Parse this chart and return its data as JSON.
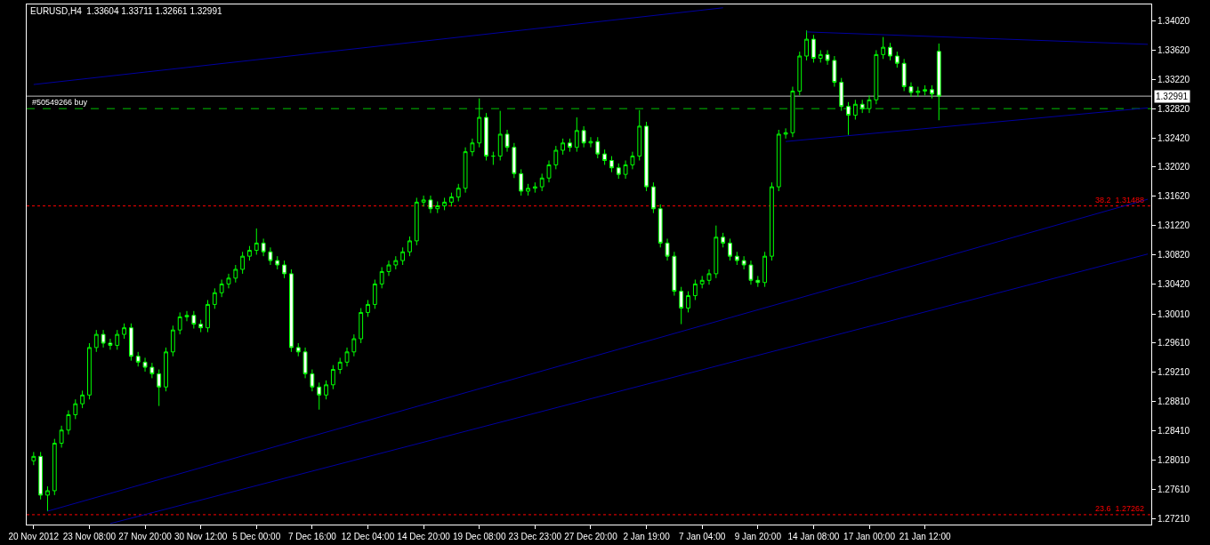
{
  "chart_data": {
    "type": "candlestick",
    "title": "EURUSD,H4  1.33604 1.33711 1.32661 1.32991",
    "color": "#00ff00",
    "categories": [
      "20 Nov 2012",
      null,
      null,
      null,
      null,
      null,
      null,
      null,
      "23 Nov 08:00",
      null,
      null,
      null,
      null,
      null,
      null,
      null,
      "27 Nov 20:00",
      null,
      null,
      null,
      null,
      null,
      null,
      null,
      "30 Nov 12:00",
      null,
      null,
      null,
      null,
      null,
      null,
      null,
      "5 Dec 00:00",
      null,
      null,
      null,
      null,
      null,
      null,
      null,
      "7 Dec 16:00",
      null,
      null,
      null,
      null,
      null,
      null,
      null,
      "12 Dec 04:00",
      null,
      null,
      null,
      null,
      null,
      null,
      null,
      "14 Dec 20:00",
      null,
      null,
      null,
      null,
      null,
      null,
      null,
      "19 Dec 08:00",
      null,
      null,
      null,
      null,
      null,
      null,
      null,
      "23 Dec 23:00",
      null,
      null,
      null,
      null,
      null,
      null,
      null,
      "27 Dec 20:00",
      null,
      null,
      null,
      null,
      null,
      null,
      null,
      "2 Jan 19:00",
      null,
      null,
      null,
      null,
      null,
      null,
      null,
      "7 Jan 04:00",
      null,
      null,
      null,
      null,
      null,
      null,
      null,
      "9 Jan 20:00",
      null,
      null,
      null,
      null,
      null,
      null,
      null,
      "14 Jan 08:00",
      null,
      null,
      null,
      null,
      null,
      null,
      null,
      "17 Jan 00:00",
      null,
      null,
      null,
      null,
      null,
      null,
      null,
      "21 Jan 12:00",
      null,
      null,
      null,
      null,
      null,
      null,
      null,
      null,
      null,
      null,
      null,
      null,
      null,
      null,
      null,
      null,
      null,
      null,
      null,
      null,
      null,
      null,
      null,
      null,
      null,
      null,
      null,
      null,
      null,
      null,
      null,
      null
    ],
    "ohlc": [
      [
        1.28,
        1.2812,
        1.2794,
        1.2806
      ],
      [
        1.2806,
        1.2812,
        1.2747,
        1.2753
      ],
      [
        1.2753,
        1.2765,
        1.2731,
        1.2759
      ],
      [
        1.2759,
        1.283,
        1.2753,
        1.2824
      ],
      [
        1.2824,
        1.2848,
        1.2818,
        1.2842
      ],
      [
        1.2842,
        1.2869,
        1.2836,
        1.2863
      ],
      [
        1.2863,
        1.2884,
        1.2857,
        1.2878
      ],
      [
        1.2878,
        1.2896,
        1.2872,
        1.289
      ],
      [
        1.289,
        1.2961,
        1.2884,
        1.2955
      ],
      [
        1.2955,
        1.2979,
        1.2949,
        1.2973
      ],
      [
        1.2973,
        1.2979,
        1.2955,
        1.2961
      ],
      [
        1.2961,
        1.2967,
        1.2952,
        1.2958
      ],
      [
        1.2958,
        1.2979,
        1.2952,
        1.2973
      ],
      [
        1.2973,
        1.2988,
        1.2967,
        1.2982
      ],
      [
        1.2982,
        1.2988,
        1.2937,
        1.2943
      ],
      [
        1.2943,
        1.2949,
        1.2929,
        1.2935
      ],
      [
        1.2935,
        1.2941,
        1.2922,
        1.2928
      ],
      [
        1.2928,
        1.2934,
        1.2913,
        1.2919
      ],
      [
        1.2919,
        1.2925,
        1.2875,
        1.2901
      ],
      [
        1.2901,
        1.2955,
        1.2895,
        1.2949
      ],
      [
        1.2949,
        1.2985,
        1.2943,
        1.2979
      ],
      [
        1.2979,
        1.3003,
        1.2973,
        1.2997
      ],
      [
        1.2997,
        1.3005,
        1.2991,
        1.2999
      ],
      [
        1.2999,
        1.3005,
        1.2981,
        1.2987
      ],
      [
        1.2987,
        1.2993,
        1.2976,
        1.2982
      ],
      [
        1.2982,
        1.302,
        1.2976,
        1.3014
      ],
      [
        1.3014,
        1.3036,
        1.3008,
        1.303
      ],
      [
        1.303,
        1.3048,
        1.3024,
        1.3042
      ],
      [
        1.3042,
        1.3056,
        1.3036,
        1.305
      ],
      [
        1.305,
        1.3068,
        1.3044,
        1.3062
      ],
      [
        1.3062,
        1.3086,
        1.3056,
        1.308
      ],
      [
        1.308,
        1.3094,
        1.3074,
        1.3088
      ],
      [
        1.3088,
        1.3118,
        1.3082,
        1.3098
      ],
      [
        1.3098,
        1.3104,
        1.308,
        1.3086
      ],
      [
        1.3086,
        1.3092,
        1.3068,
        1.3074
      ],
      [
        1.3074,
        1.308,
        1.3062,
        1.3068
      ],
      [
        1.3068,
        1.3074,
        1.305,
        1.3056
      ],
      [
        1.3056,
        1.3062,
        1.2949,
        1.2955
      ],
      [
        1.2955,
        1.2961,
        1.2943,
        1.2949
      ],
      [
        1.2949,
        1.2955,
        1.2913,
        1.2919
      ],
      [
        1.2919,
        1.2925,
        1.2895,
        1.2901
      ],
      [
        1.2901,
        1.2907,
        1.287,
        1.289
      ],
      [
        1.289,
        1.291,
        1.2884,
        1.2904
      ],
      [
        1.2904,
        1.2931,
        1.2898,
        1.2925
      ],
      [
        1.2925,
        1.2941,
        1.2919,
        1.2935
      ],
      [
        1.2935,
        1.2955,
        1.2929,
        1.2949
      ],
      [
        1.2949,
        1.2973,
        1.2943,
        1.2967
      ],
      [
        1.2967,
        1.3009,
        1.2961,
        1.3003
      ],
      [
        1.3003,
        1.302,
        1.2997,
        1.3014
      ],
      [
        1.3014,
        1.3048,
        1.3008,
        1.3042
      ],
      [
        1.3042,
        1.3065,
        1.3036,
        1.3059
      ],
      [
        1.3059,
        1.3074,
        1.3053,
        1.3068
      ],
      [
        1.3068,
        1.308,
        1.3062,
        1.3074
      ],
      [
        1.3074,
        1.3092,
        1.3068,
        1.3086
      ],
      [
        1.3086,
        1.3107,
        1.308,
        1.3101
      ],
      [
        1.3101,
        1.316,
        1.3095,
        1.3154
      ],
      [
        1.3154,
        1.3163,
        1.3148,
        1.3157
      ],
      [
        1.3157,
        1.3163,
        1.3139,
        1.3145
      ],
      [
        1.3145,
        1.3155,
        1.3139,
        1.3149
      ],
      [
        1.3149,
        1.316,
        1.3143,
        1.3154
      ],
      [
        1.3154,
        1.3167,
        1.3148,
        1.3161
      ],
      [
        1.3161,
        1.3179,
        1.3155,
        1.3173
      ],
      [
        1.3173,
        1.3229,
        1.3167,
        1.3223
      ],
      [
        1.3223,
        1.3241,
        1.3217,
        1.3235
      ],
      [
        1.3235,
        1.3296,
        1.3229,
        1.327
      ],
      [
        1.327,
        1.3276,
        1.3211,
        1.3217
      ],
      [
        1.3217,
        1.3223,
        1.3205,
        1.3217
      ],
      [
        1.3217,
        1.3279,
        1.3211,
        1.3247
      ],
      [
        1.3247,
        1.3253,
        1.3223,
        1.3229
      ],
      [
        1.3229,
        1.3235,
        1.3187,
        1.3193
      ],
      [
        1.3193,
        1.3199,
        1.3163,
        1.3169
      ],
      [
        1.3169,
        1.3179,
        1.3163,
        1.3173
      ],
      [
        1.3173,
        1.3181,
        1.3167,
        1.3175
      ],
      [
        1.3175,
        1.3193,
        1.3169,
        1.3187
      ],
      [
        1.3187,
        1.3211,
        1.3181,
        1.3205
      ],
      [
        1.3205,
        1.3231,
        1.3199,
        1.3225
      ],
      [
        1.3225,
        1.3241,
        1.3219,
        1.3235
      ],
      [
        1.3235,
        1.3241,
        1.3223,
        1.3229
      ],
      [
        1.3229,
        1.327,
        1.3223,
        1.3252
      ],
      [
        1.3252,
        1.3258,
        1.3229,
        1.3235
      ],
      [
        1.3235,
        1.3243,
        1.3229,
        1.3237
      ],
      [
        1.3237,
        1.3243,
        1.3214,
        1.322
      ],
      [
        1.322,
        1.3226,
        1.3205,
        1.3211
      ],
      [
        1.3211,
        1.3217,
        1.3195,
        1.3201
      ],
      [
        1.3201,
        1.3207,
        1.3186,
        1.3192
      ],
      [
        1.3192,
        1.3211,
        1.3186,
        1.3205
      ],
      [
        1.3205,
        1.3223,
        1.3199,
        1.3217
      ],
      [
        1.3217,
        1.328,
        1.3211,
        1.3258
      ],
      [
        1.3258,
        1.3264,
        1.3169,
        1.3175
      ],
      [
        1.3175,
        1.3181,
        1.3139,
        1.3145
      ],
      [
        1.3145,
        1.3151,
        1.3092,
        1.3098
      ],
      [
        1.3098,
        1.3104,
        1.3074,
        1.308
      ],
      [
        1.308,
        1.3086,
        1.3026,
        1.3032
      ],
      [
        1.3032,
        1.3038,
        1.2987,
        1.3009
      ],
      [
        1.3009,
        1.3032,
        1.3003,
        1.3026
      ],
      [
        1.3026,
        1.3048,
        1.302,
        1.3042
      ],
      [
        1.3042,
        1.3053,
        1.3036,
        1.3047
      ],
      [
        1.3047,
        1.3062,
        1.3041,
        1.3056
      ],
      [
        1.3056,
        1.3122,
        1.305,
        1.3106
      ],
      [
        1.3106,
        1.3112,
        1.3092,
        1.3098
      ],
      [
        1.3098,
        1.3104,
        1.3074,
        1.308
      ],
      [
        1.308,
        1.3086,
        1.3068,
        1.3074
      ],
      [
        1.3074,
        1.308,
        1.3062,
        1.3068
      ],
      [
        1.3068,
        1.3074,
        1.3041,
        1.3047
      ],
      [
        1.3047,
        1.3053,
        1.3038,
        1.3044
      ],
      [
        1.3044,
        1.3086,
        1.3038,
        1.308
      ],
      [
        1.308,
        1.3181,
        1.3074,
        1.3175
      ],
      [
        1.3175,
        1.3253,
        1.3169,
        1.3247
      ],
      [
        1.3247,
        1.3255,
        1.3241,
        1.3249
      ],
      [
        1.3249,
        1.3312,
        1.3243,
        1.3306
      ],
      [
        1.3306,
        1.336,
        1.33,
        1.3354
      ],
      [
        1.3354,
        1.3389,
        1.3348,
        1.3377
      ],
      [
        1.3377,
        1.3383,
        1.3345,
        1.3351
      ],
      [
        1.3351,
        1.3362,
        1.3345,
        1.3356
      ],
      [
        1.3356,
        1.3362,
        1.3342,
        1.3348
      ],
      [
        1.3348,
        1.3354,
        1.3312,
        1.3318
      ],
      [
        1.3318,
        1.3324,
        1.3279,
        1.3285
      ],
      [
        1.3285,
        1.3291,
        1.3246,
        1.3273
      ],
      [
        1.3273,
        1.3294,
        1.3267,
        1.3288
      ],
      [
        1.3288,
        1.3294,
        1.3276,
        1.3282
      ],
      [
        1.3282,
        1.33,
        1.3276,
        1.3294
      ],
      [
        1.3294,
        1.3362,
        1.3288,
        1.3356
      ],
      [
        1.3356,
        1.338,
        1.335,
        1.3366
      ],
      [
        1.3366,
        1.3372,
        1.3348,
        1.3354
      ],
      [
        1.3354,
        1.336,
        1.3338,
        1.3344
      ],
      [
        1.3344,
        1.335,
        1.3306,
        1.3312
      ],
      [
        1.3312,
        1.3318,
        1.3298,
        1.3304
      ],
      [
        1.3304,
        1.3312,
        1.3298,
        1.3306
      ],
      [
        1.3306,
        1.3314,
        1.33,
        1.3308
      ],
      [
        1.3308,
        1.3314,
        1.3296,
        1.3302
      ],
      [
        1.33604,
        1.33711,
        1.32661,
        1.32991
      ],
      null,
      null,
      null,
      null,
      null,
      null,
      null,
      null,
      null,
      null,
      null,
      null,
      null,
      null,
      null,
      null,
      null,
      null,
      null,
      null,
      null,
      null,
      null,
      null,
      null,
      null,
      null,
      null,
      null,
      null
    ],
    "series": [
      {
        "type": "line",
        "color": "#0000a0",
        "values": [
          1.3315,
          null,
          null,
          null,
          null,
          null,
          null,
          null,
          null,
          null,
          null,
          null,
          null,
          null,
          null,
          null,
          null,
          null,
          null,
          null,
          null,
          null,
          null,
          null,
          null,
          null,
          null,
          null,
          null,
          null,
          null,
          null,
          null,
          null,
          null,
          null,
          null,
          null,
          null,
          null,
          null,
          null,
          null,
          null,
          null,
          null,
          null,
          null,
          null,
          null,
          null,
          null,
          null,
          null,
          null,
          null,
          null,
          null,
          null,
          null,
          null,
          null,
          null,
          null,
          null,
          null,
          null,
          null,
          null,
          null,
          null,
          null,
          null,
          null,
          null,
          null,
          null,
          null,
          null,
          null,
          null,
          null,
          null,
          null,
          null,
          null,
          null,
          null,
          null,
          null,
          null,
          null,
          null,
          null,
          null,
          null,
          null,
          null,
          null,
          1.342,
          null,
          null,
          null,
          null,
          null,
          null,
          null,
          null,
          null,
          null,
          null,
          null,
          null,
          null,
          null,
          null,
          null,
          null,
          null,
          null,
          null,
          null,
          null,
          null,
          null,
          null,
          null,
          null,
          null,
          null,
          null,
          null,
          null,
          null,
          null,
          null,
          null,
          null,
          null,
          null,
          null,
          null,
          null,
          null,
          null,
          null,
          null,
          null,
          null,
          null,
          null,
          null,
          null,
          null,
          null,
          null,
          null,
          null,
          null,
          null,
          null
        ]
      },
      {
        "type": "line",
        "color": "#0000a0",
        "values": [
          null,
          null,
          1.2731,
          null,
          null,
          null,
          null,
          null,
          null,
          null,
          null,
          null,
          null,
          null,
          null,
          null,
          null,
          null,
          null,
          null,
          null,
          null,
          null,
          null,
          null,
          null,
          null,
          null,
          null,
          null,
          null,
          null,
          null,
          null,
          null,
          null,
          null,
          null,
          null,
          null,
          null,
          null,
          null,
          null,
          null,
          null,
          null,
          null,
          null,
          null,
          null,
          null,
          null,
          null,
          null,
          null,
          null,
          null,
          null,
          null,
          null,
          null,
          null,
          null,
          null,
          null,
          null,
          null,
          null,
          null,
          null,
          null,
          null,
          null,
          null,
          null,
          null,
          null,
          null,
          null,
          null,
          null,
          null,
          null,
          null,
          null,
          null,
          null,
          null,
          null,
          null,
          null,
          null,
          null,
          null,
          null,
          null,
          null,
          null,
          null,
          null,
          null,
          null,
          null,
          null,
          null,
          null,
          null,
          null,
          null,
          null,
          null,
          null,
          null,
          null,
          null,
          null,
          null,
          null,
          null,
          null,
          null,
          null,
          null,
          null,
          null,
          null,
          null,
          null,
          null,
          null,
          null,
          null,
          null,
          null,
          null,
          null,
          null,
          null,
          null,
          null,
          null,
          null,
          null,
          null,
          null,
          null,
          null,
          null,
          null,
          null,
          null,
          null,
          null,
          null,
          null,
          null,
          null,
          null,
          null,
          1.3158
        ]
      },
      {
        "type": "line",
        "color": "#0000a0",
        "values": [
          null,
          null,
          null,
          null,
          null,
          null,
          null,
          null,
          null,
          null,
          null,
          1.2714,
          null,
          null,
          null,
          null,
          null,
          null,
          null,
          null,
          null,
          null,
          null,
          null,
          null,
          null,
          null,
          null,
          null,
          null,
          null,
          null,
          null,
          null,
          null,
          null,
          null,
          null,
          null,
          null,
          null,
          null,
          null,
          null,
          null,
          null,
          null,
          null,
          null,
          null,
          null,
          null,
          null,
          null,
          null,
          null,
          null,
          null,
          null,
          null,
          null,
          null,
          null,
          null,
          null,
          null,
          null,
          null,
          null,
          null,
          null,
          null,
          null,
          null,
          null,
          null,
          null,
          null,
          null,
          null,
          null,
          null,
          null,
          null,
          null,
          null,
          null,
          null,
          null,
          null,
          null,
          null,
          null,
          null,
          null,
          null,
          null,
          null,
          null,
          null,
          null,
          null,
          null,
          null,
          null,
          null,
          null,
          null,
          null,
          null,
          null,
          null,
          null,
          null,
          null,
          null,
          null,
          null,
          null,
          null,
          null,
          null,
          null,
          null,
          null,
          null,
          null,
          null,
          null,
          null,
          null,
          null,
          null,
          null,
          null,
          null,
          null,
          null,
          null,
          null,
          null,
          null,
          null,
          null,
          null,
          null,
          null,
          null,
          null,
          null,
          null,
          null,
          null,
          null,
          null,
          null,
          null,
          null,
          null,
          null,
          1.3083
        ]
      },
      {
        "type": "line",
        "color": "#0000a0",
        "values": [
          null,
          null,
          null,
          null,
          null,
          null,
          null,
          null,
          null,
          null,
          null,
          null,
          null,
          null,
          null,
          null,
          null,
          null,
          null,
          null,
          null,
          null,
          null,
          null,
          null,
          null,
          null,
          null,
          null,
          null,
          null,
          null,
          null,
          null,
          null,
          null,
          null,
          null,
          null,
          null,
          null,
          null,
          null,
          null,
          null,
          null,
          null,
          null,
          null,
          null,
          null,
          null,
          null,
          null,
          null,
          null,
          null,
          null,
          null,
          null,
          null,
          null,
          null,
          null,
          null,
          null,
          null,
          null,
          null,
          null,
          null,
          null,
          null,
          null,
          null,
          null,
          null,
          null,
          null,
          null,
          null,
          null,
          null,
          null,
          null,
          null,
          null,
          null,
          null,
          null,
          null,
          null,
          null,
          null,
          null,
          null,
          null,
          null,
          null,
          null,
          null,
          null,
          null,
          null,
          null,
          null,
          null,
          null,
          null,
          null,
          null,
          1.3387,
          null,
          null,
          null,
          null,
          null,
          null,
          null,
          null,
          null,
          null,
          null,
          null,
          null,
          null,
          null,
          null,
          null,
          null,
          null,
          null,
          null,
          null,
          null,
          null,
          null,
          null,
          null,
          null,
          null,
          null,
          null,
          null,
          null,
          null,
          null,
          null,
          null,
          null,
          null,
          null,
          null,
          null,
          null,
          null,
          null,
          null,
          null,
          null,
          1.337
        ]
      },
      {
        "type": "line",
        "color": "#0000a0",
        "values": [
          null,
          null,
          null,
          null,
          null,
          null,
          null,
          null,
          null,
          null,
          null,
          null,
          null,
          null,
          null,
          null,
          null,
          null,
          null,
          null,
          null,
          null,
          null,
          null,
          null,
          null,
          null,
          null,
          null,
          null,
          null,
          null,
          null,
          null,
          null,
          null,
          null,
          null,
          null,
          null,
          null,
          null,
          null,
          null,
          null,
          null,
          null,
          null,
          null,
          null,
          null,
          null,
          null,
          null,
          null,
          null,
          null,
          null,
          null,
          null,
          null,
          null,
          null,
          null,
          null,
          null,
          null,
          null,
          null,
          null,
          null,
          null,
          null,
          null,
          null,
          null,
          null,
          null,
          null,
          null,
          null,
          null,
          null,
          null,
          null,
          null,
          null,
          null,
          null,
          null,
          null,
          null,
          null,
          null,
          null,
          null,
          null,
          null,
          null,
          null,
          null,
          null,
          null,
          null,
          null,
          null,
          null,
          null,
          1.3237,
          null,
          null,
          null,
          null,
          null,
          null,
          null,
          null,
          null,
          null,
          null,
          null,
          null,
          null,
          null,
          null,
          null,
          null,
          null,
          null,
          null,
          null,
          null,
          null,
          null,
          null,
          null,
          null,
          null,
          null,
          null,
          null,
          null,
          null,
          null,
          null,
          null,
          null,
          null,
          null,
          null,
          null,
          null,
          null,
          null,
          null,
          null,
          null,
          null,
          null,
          null,
          1.3283
        ]
      }
    ],
    "ref_lines": [
      {
        "axis": "y",
        "value": 1.32991,
        "label": "1.32991",
        "color": "#c0c0c0",
        "line_style": "solid"
      },
      {
        "axis": "y",
        "value": 1.3282,
        "label": "#50549266 buy",
        "color": "#00c000",
        "line_style": "dashed"
      },
      {
        "axis": "y",
        "value": 1.31488,
        "label": "38.2  1.31488",
        "color": "#ff0000",
        "line_style": "dotted"
      },
      {
        "axis": "y",
        "value": 1.27262,
        "label": "23.6  1.27262",
        "color": "#ff0000",
        "line_style": "dotted"
      }
    ],
    "ylim": [
      1.27127,
      1.34246
    ],
    "yticks": [
      {
        "value": 1.3402,
        "label": "1.34020"
      },
      {
        "value": 1.3362,
        "label": "1.33620"
      },
      {
        "value": 1.3322,
        "label": "1.33220"
      },
      {
        "value": 1.3282,
        "label": "1.32820"
      },
      {
        "value": 1.3242,
        "label": "1.32420"
      },
      {
        "value": 1.3202,
        "label": "1.32020"
      },
      {
        "value": 1.3162,
        "label": "1.31620"
      },
      {
        "value": 1.3122,
        "label": "1.31220"
      },
      {
        "value": 1.3082,
        "label": "1.30820"
      },
      {
        "value": 1.3042,
        "label": "1.30420"
      },
      {
        "value": 1.3001,
        "label": "1.30010"
      },
      {
        "value": 1.2961,
        "label": "1.29610"
      },
      {
        "value": 1.2921,
        "label": "1.29210"
      },
      {
        "value": 1.2881,
        "label": "1.28810"
      },
      {
        "value": 1.2841,
        "label": "1.28410"
      },
      {
        "value": 1.2801,
        "label": "1.28010"
      },
      {
        "value": 1.2761,
        "label": "1.27610"
      },
      {
        "value": 1.2721,
        "label": "1.27210"
      }
    ],
    "grid": false
  }
}
